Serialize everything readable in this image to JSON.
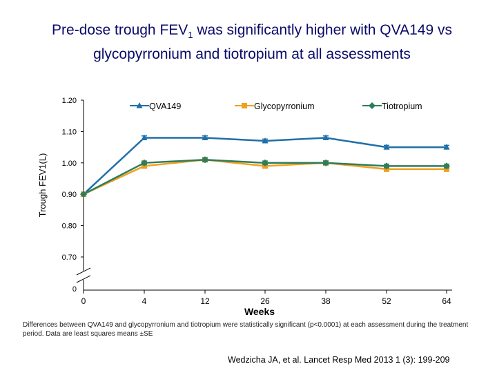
{
  "title": {
    "prefix": "Pre-dose trough FEV",
    "sub": "1",
    "suffix": " was significantly higher with QVA149 vs glycopyrronium and tiotropium at all assessments"
  },
  "footnote": "Differences between QVA149 and glycopyrronium and tiotropium were statistically significant (p<0.0001) at each assessment during the treatment period. Data are least squares means ±SE",
  "citation": "Wedzicha JA, et al. Lancet Resp Med 2013 1 (3): 199-209",
  "chart_data": {
    "type": "line",
    "xlabel": "Weeks",
    "ylabel": "Trough FEV1(L)",
    "categories": [
      "0",
      "4",
      "12",
      "26",
      "38",
      "52",
      "64"
    ],
    "y_ticks": [
      "1.20",
      "1.10",
      "1.00",
      "0.90",
      "0.80",
      "0.70"
    ],
    "y_break_label": "0",
    "ylim": [
      0.7,
      1.2
    ],
    "axis_break": true,
    "legend_position": "top",
    "series": [
      {
        "name": "QVA149",
        "color": "#1f6fa8",
        "marker": "triangle",
        "values": [
          0.9,
          1.08,
          1.08,
          1.07,
          1.08,
          1.05,
          1.05
        ]
      },
      {
        "name": "Glycopyrronium",
        "color": "#f0a020",
        "marker": "square",
        "values": [
          0.9,
          0.99,
          1.01,
          0.99,
          1.0,
          0.98,
          0.98
        ]
      },
      {
        "name": "Tiotropium",
        "color": "#2e7d5b",
        "marker": "diamond",
        "values": [
          0.9,
          1.0,
          1.01,
          1.0,
          1.0,
          0.99,
          0.99
        ]
      }
    ],
    "error_bar": 0.006
  }
}
